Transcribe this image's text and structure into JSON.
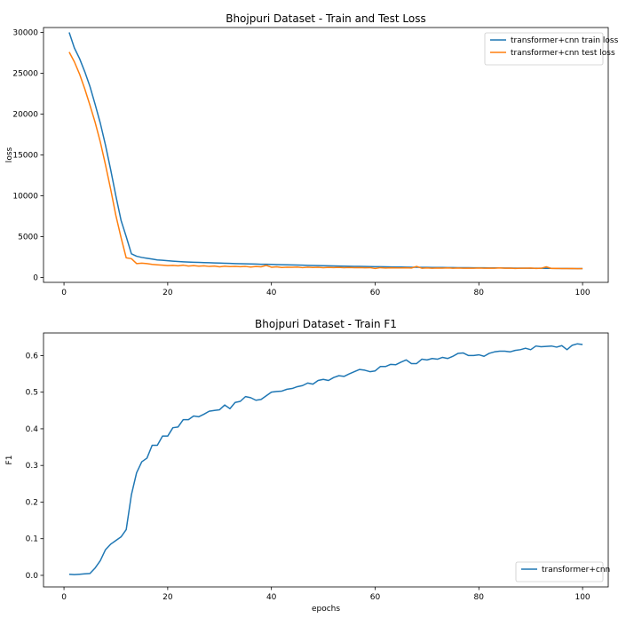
{
  "chart_data": [
    {
      "type": "line",
      "title": "Bhojpuri Dataset - Train and Test Loss",
      "xlabel": "",
      "ylabel": "loss",
      "xlim": [
        -3.95,
        104.95
      ],
      "ylim": [
        -600,
        30600
      ],
      "xticks": [
        0,
        20,
        40,
        60,
        80,
        100
      ],
      "yticks": [
        0,
        5000,
        10000,
        15000,
        20000,
        25000,
        30000
      ],
      "ytick_labels": [
        "0",
        "5000",
        "10000",
        "15000",
        "20000",
        "25000",
        "30000"
      ],
      "grid": false,
      "legend": "top-right",
      "x": [
        1,
        2,
        3,
        4,
        5,
        6,
        7,
        8,
        9,
        10,
        11,
        12,
        13,
        14,
        15,
        16,
        17,
        18,
        19,
        20,
        21,
        22,
        23,
        24,
        25,
        26,
        27,
        28,
        29,
        30,
        31,
        32,
        33,
        34,
        35,
        36,
        37,
        38,
        39,
        40,
        41,
        42,
        43,
        44,
        45,
        46,
        47,
        48,
        49,
        50,
        51,
        52,
        53,
        54,
        55,
        56,
        57,
        58,
        59,
        60,
        61,
        62,
        63,
        64,
        65,
        66,
        67,
        68,
        69,
        70,
        71,
        72,
        73,
        74,
        75,
        76,
        77,
        78,
        79,
        80,
        81,
        82,
        83,
        84,
        85,
        86,
        87,
        88,
        89,
        90,
        91,
        92,
        93,
        94,
        95,
        96,
        97,
        98,
        99,
        100
      ],
      "series": [
        {
          "name": "transformer+cnn train loss",
          "color": "#1f77b4",
          "values": [
            30000,
            28100,
            26800,
            25200,
            23400,
            21200,
            18900,
            16200,
            13200,
            10000,
            7000,
            5000,
            2900,
            2600,
            2450,
            2350,
            2250,
            2150,
            2100,
            2050,
            2000,
            1960,
            1920,
            1890,
            1860,
            1840,
            1820,
            1800,
            1780,
            1760,
            1740,
            1720,
            1700,
            1680,
            1670,
            1660,
            1640,
            1620,
            1610,
            1600,
            1580,
            1560,
            1545,
            1530,
            1515,
            1500,
            1485,
            1470,
            1455,
            1440,
            1425,
            1410,
            1395,
            1380,
            1370,
            1360,
            1350,
            1340,
            1330,
            1320,
            1310,
            1300,
            1290,
            1280,
            1270,
            1260,
            1250,
            1245,
            1240,
            1230,
            1225,
            1220,
            1215,
            1210,
            1205,
            1200,
            1195,
            1190,
            1185,
            1180,
            1175,
            1170,
            1165,
            1160,
            1155,
            1150,
            1145,
            1140,
            1135,
            1130,
            1125,
            1120,
            1115,
            1110,
            1105,
            1100,
            1095,
            1090,
            1085,
            1080
          ]
        },
        {
          "name": "transformer+cnn test loss",
          "color": "#ff7f0e",
          "values": [
            27600,
            26400,
            24900,
            23100,
            21100,
            19000,
            16600,
            13800,
            10800,
            7600,
            4900,
            2400,
            2300,
            1700,
            1750,
            1700,
            1600,
            1550,
            1500,
            1450,
            1480,
            1420,
            1500,
            1400,
            1450,
            1380,
            1420,
            1350,
            1400,
            1300,
            1380,
            1330,
            1360,
            1320,
            1350,
            1280,
            1340,
            1300,
            1480,
            1250,
            1300,
            1220,
            1260,
            1250,
            1280,
            1200,
            1260,
            1220,
            1250,
            1190,
            1240,
            1210,
            1230,
            1200,
            1220,
            1190,
            1210,
            1180,
            1200,
            1100,
            1200,
            1150,
            1180,
            1170,
            1160,
            1180,
            1150,
            1350,
            1130,
            1160,
            1130,
            1150,
            1140,
            1160,
            1130,
            1150,
            1120,
            1140,
            1130,
            1150,
            1120,
            1140,
            1130,
            1160,
            1120,
            1140,
            1100,
            1130,
            1120,
            1150,
            1100,
            1120,
            1300,
            1100,
            1110,
            1090,
            1080,
            1100,
            1070,
            1090
          ]
        }
      ]
    },
    {
      "type": "line",
      "title": "Bhojpuri Dataset - Train F1",
      "xlabel": "epochs",
      "ylabel": "F1",
      "xlim": [
        -3.95,
        104.95
      ],
      "ylim": [
        -0.0316,
        0.6616
      ],
      "xticks": [
        0,
        20,
        40,
        60,
        80,
        100
      ],
      "yticks": [
        0.0,
        0.1,
        0.2,
        0.3,
        0.4,
        0.5,
        0.6
      ],
      "ytick_labels": [
        "0.0",
        "0.1",
        "0.2",
        "0.3",
        "0.4",
        "0.5",
        "0.6"
      ],
      "grid": false,
      "legend": "bottom-right",
      "x": [
        1,
        2,
        3,
        4,
        5,
        6,
        7,
        8,
        9,
        10,
        11,
        12,
        13,
        14,
        15,
        16,
        17,
        18,
        19,
        20,
        21,
        22,
        23,
        24,
        25,
        26,
        27,
        28,
        29,
        30,
        31,
        32,
        33,
        34,
        35,
        36,
        37,
        38,
        39,
        40,
        41,
        42,
        43,
        44,
        45,
        46,
        47,
        48,
        49,
        50,
        51,
        52,
        53,
        54,
        55,
        56,
        57,
        58,
        59,
        60,
        61,
        62,
        63,
        64,
        65,
        66,
        67,
        68,
        69,
        70,
        71,
        72,
        73,
        74,
        75,
        76,
        77,
        78,
        79,
        80,
        81,
        82,
        83,
        84,
        85,
        86,
        87,
        88,
        89,
        90,
        91,
        92,
        93,
        94,
        95,
        96,
        97,
        98,
        99,
        100
      ],
      "series": [
        {
          "name": "transformer+cnn",
          "color": "#1f77b4",
          "values": [
            0.003,
            0.002,
            0.003,
            0.004,
            0.005,
            0.02,
            0.04,
            0.07,
            0.085,
            0.095,
            0.105,
            0.125,
            0.22,
            0.28,
            0.31,
            0.32,
            0.355,
            0.355,
            0.38,
            0.38,
            0.403,
            0.405,
            0.425,
            0.425,
            0.435,
            0.433,
            0.44,
            0.448,
            0.45,
            0.452,
            0.465,
            0.455,
            0.472,
            0.475,
            0.488,
            0.485,
            0.478,
            0.48,
            0.49,
            0.5,
            0.502,
            0.503,
            0.508,
            0.51,
            0.515,
            0.518,
            0.525,
            0.522,
            0.532,
            0.535,
            0.532,
            0.54,
            0.545,
            0.543,
            0.55,
            0.556,
            0.562,
            0.56,
            0.556,
            0.558,
            0.57,
            0.57,
            0.576,
            0.575,
            0.582,
            0.588,
            0.578,
            0.578,
            0.59,
            0.588,
            0.592,
            0.59,
            0.595,
            0.592,
            0.598,
            0.606,
            0.607,
            0.6,
            0.6,
            0.602,
            0.598,
            0.606,
            0.61,
            0.612,
            0.612,
            0.61,
            0.614,
            0.616,
            0.62,
            0.616,
            0.626,
            0.624,
            0.625,
            0.626,
            0.623,
            0.627,
            0.616,
            0.628,
            0.632,
            0.63
          ]
        }
      ]
    }
  ]
}
